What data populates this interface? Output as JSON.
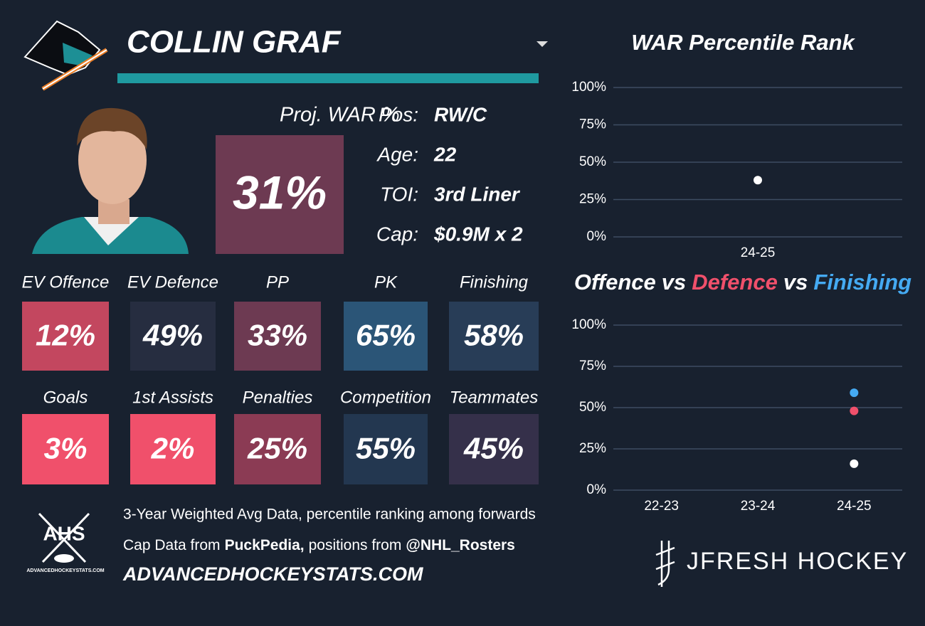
{
  "header": {
    "player": "COLLIN GRAF"
  },
  "proj_war": {
    "label": "Proj. WAR %",
    "value": "31%",
    "color": "#6d3a52"
  },
  "info": [
    {
      "label": "Pos:",
      "value": "RW/C"
    },
    {
      "label": "Age:",
      "value": "22"
    },
    {
      "label": "TOI:",
      "value": "3rd Liner"
    },
    {
      "label": "Cap:",
      "value": "$0.9M x 2"
    }
  ],
  "tiles": [
    {
      "label": "EV Offence",
      "value": "12%",
      "color": "#c3475f"
    },
    {
      "label": "EV Defence",
      "value": "49%",
      "color": "#262d40"
    },
    {
      "label": "PP",
      "value": "33%",
      "color": "#6d3a52"
    },
    {
      "label": "PK",
      "value": "65%",
      "color": "#2b5577"
    },
    {
      "label": "Finishing",
      "value": "58%",
      "color": "#283d57"
    },
    {
      "label": "Goals",
      "value": "3%",
      "color": "#f0506b"
    },
    {
      "label": "1st Assists",
      "value": "2%",
      "color": "#f0506b"
    },
    {
      "label": "Penalties",
      "value": "25%",
      "color": "#8b3b54"
    },
    {
      "label": "Competition",
      "value": "55%",
      "color": "#233750"
    },
    {
      "label": "Teammates",
      "value": "45%",
      "color": "#35304a"
    }
  ],
  "footer": {
    "logo": "AHS",
    "logo_caption": "ADVANCEDHOCKEYSTATS.COM",
    "line1": "3-Year Weighted Avg Data, percentile ranking among forwards",
    "line2": [
      {
        "text": "Cap Data from",
        "bold": false
      },
      {
        "text": "PuckPedia,",
        "bold": true
      },
      {
        "text": "positions from",
        "bold": false
      },
      {
        "text": "@NHL_Rosters",
        "bold": true
      }
    ],
    "site": "ADVANCEDHOCKEYSTATS.COM",
    "brand": "JFRESH HOCKEY"
  },
  "chart_data": [
    {
      "type": "dot",
      "title": "WAR Percentile Rank",
      "categories": [
        "24-25"
      ],
      "values": [
        38
      ],
      "color": "#ffffff",
      "ylim": [
        0,
        100
      ],
      "yticks": [
        {
          "value": 0,
          "label": "0%"
        },
        {
          "value": 25,
          "label": "25%"
        },
        {
          "value": 50,
          "label": "50%"
        },
        {
          "value": 75,
          "label": "75%"
        },
        {
          "value": 100,
          "label": "100%"
        }
      ],
      "grid": true
    },
    {
      "type": "dot",
      "legend_separator": "vs",
      "categories": [
        "22-23",
        "23-24",
        "24-25"
      ],
      "series": [
        {
          "name": "Offence",
          "color": "#ffffff",
          "values": [
            null,
            null,
            16
          ]
        },
        {
          "name": "Defence",
          "color": "#f0506b",
          "values": [
            null,
            null,
            48
          ]
        },
        {
          "name": "Finishing",
          "color": "#45aaf2",
          "values": [
            null,
            null,
            59
          ]
        }
      ],
      "ylim": [
        0,
        100
      ],
      "yticks": [
        {
          "value": 0,
          "label": "0%"
        },
        {
          "value": 25,
          "label": "25%"
        },
        {
          "value": 50,
          "label": "50%"
        },
        {
          "value": 75,
          "label": "75%"
        },
        {
          "value": 100,
          "label": "100%"
        }
      ],
      "grid": true
    }
  ]
}
